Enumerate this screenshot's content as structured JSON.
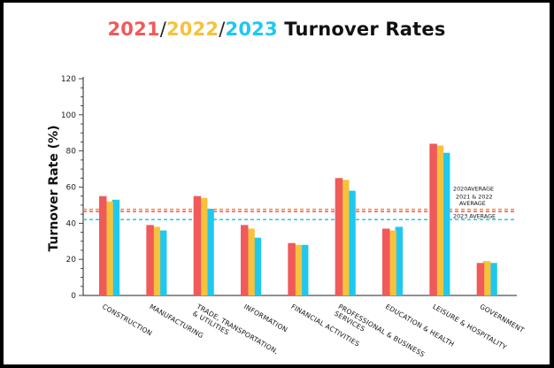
{
  "title": {
    "part_2021": "2021",
    "sep1": "/",
    "part_2022": "2022",
    "sep2": "/",
    "part_2023": "2023",
    "rest": " Turnover Rates"
  },
  "colors": {
    "s2021": "#f05a5a",
    "s2022": "#f7c23b",
    "s2023": "#1ec8f0",
    "avg2021_2022": "#f28c3a",
    "avg2023": "#1ec8f0"
  },
  "chart_data": {
    "type": "bar",
    "title": "2021/2022/2023 Turnover Rates",
    "xlabel": "",
    "ylabel": "Turnover Rate (%)",
    "ylim": [
      0,
      120
    ],
    "yticks": [
      0,
      20,
      40,
      60,
      80,
      100,
      120
    ],
    "grid": false,
    "categories": [
      [
        "CONSTRUCTION"
      ],
      [
        "MANUFACTURING"
      ],
      [
        "TRADE, TRANSPORTATION,",
        "& UTILITIES"
      ],
      [
        "INFORMATION"
      ],
      [
        "FINANCIAL ACTIVITIES"
      ],
      [
        "PROFESSIONAL & BUSINESS",
        "SERVICES"
      ],
      [
        "EDUCATION & HEALTH"
      ],
      [
        "LEISURE & HOSPITALITY"
      ],
      [
        "GOVERNMENT"
      ]
    ],
    "series": [
      {
        "year": "2021",
        "values": [
          55,
          39,
          55,
          39,
          29,
          65,
          37,
          84,
          18
        ]
      },
      {
        "year": "2022",
        "values": [
          52,
          38,
          54,
          37,
          28,
          64,
          36,
          83,
          19
        ]
      },
      {
        "year": "2023",
        "values": [
          53,
          36,
          48,
          32,
          28,
          58,
          38,
          79,
          18
        ]
      }
    ],
    "reference_lines": [
      {
        "label": "2020AVERAGE",
        "value": 47.2
      },
      {
        "label": "2021 & 2022 AVERAGE",
        "lines": [
          "2021 & 2022",
          "AVERAGE"
        ],
        "value": 47.2
      },
      {
        "label": "2023 AVERAGE",
        "value": 42
      }
    ]
  }
}
